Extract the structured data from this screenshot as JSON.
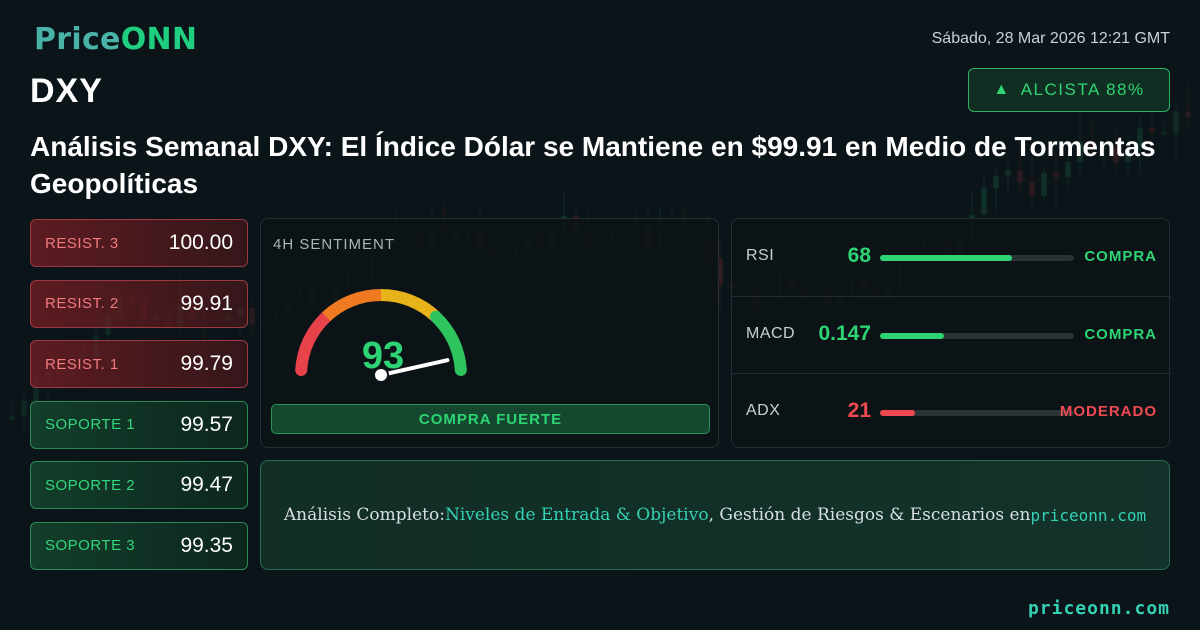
{
  "brand": {
    "name_part1": "Price",
    "name_part2": "ONN",
    "color1": "#49b3a8",
    "color2": "#1fce7e"
  },
  "datetime": "Sábado, 28 Mar 2026 12:21 GMT",
  "symbol": "DXY",
  "trend": {
    "arrow": "▲",
    "label": "ALCISTA 88%"
  },
  "headline": "Análisis Semanal DXY: El Índice Dólar se Mantiene en $99.91 en Medio de Tormentas Geopolíticas",
  "levels": [
    {
      "label": "RESIST. 3",
      "value": "100.00",
      "kind": "resistance"
    },
    {
      "label": "RESIST. 2",
      "value": "99.91",
      "kind": "resistance"
    },
    {
      "label": "RESIST. 1",
      "value": "99.79",
      "kind": "resistance"
    },
    {
      "label": "SOPORTE 1",
      "value": "99.57",
      "kind": "support"
    },
    {
      "label": "SOPORTE 2",
      "value": "99.47",
      "kind": "support"
    },
    {
      "label": "SOPORTE 3",
      "value": "99.35",
      "kind": "support"
    }
  ],
  "sentiment": {
    "title": "4H SENTIMENT",
    "score": 93,
    "score_text": "93",
    "max": 100,
    "verdict": "COMPRA FUERTE"
  },
  "indicators": [
    {
      "name": "RSI",
      "value": "68",
      "fill_fraction": 0.68,
      "signal": "COMPRA",
      "color": "green"
    },
    {
      "name": "MACD",
      "value": "0.147",
      "fill_fraction": 0.33,
      "signal": "COMPRA",
      "color": "green"
    },
    {
      "name": "ADX",
      "value": "21",
      "fill_fraction": 0.18,
      "signal": "MODERADO",
      "color": "red"
    }
  ],
  "cta": {
    "prefix": "Análisis Completo: ",
    "highlight": "Niveles de Entrada & Objetivo",
    "middle": ", Gestión de Riesgos & Escenarios en ",
    "domain": "priceonn.com"
  },
  "footer_url": "priceonn.com",
  "colors": {
    "bull": "#2ed374",
    "bear": "#ef4a52",
    "accent": "#34d1b4"
  }
}
